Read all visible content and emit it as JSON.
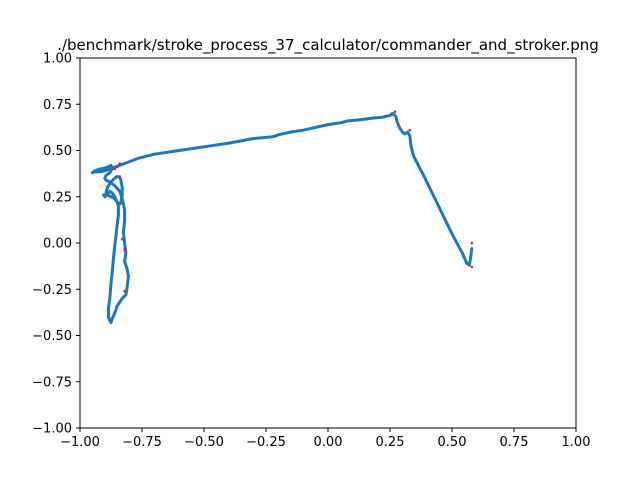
{
  "chart_data": {
    "type": "line",
    "title": "./benchmark/stroke_process_37_calculator/commander_and_stroker.png",
    "xlabel": "",
    "ylabel": "",
    "xlim": [
      -1.0,
      1.0
    ],
    "ylim": [
      -1.0,
      1.0
    ],
    "grid": false,
    "xticks": [
      "−1.00",
      "−0.75",
      "−0.50",
      "−0.25",
      "0.00",
      "0.25",
      "0.50",
      "0.75",
      "1.00"
    ],
    "yticks": [
      "−1.00",
      "−0.75",
      "−0.50",
      "−0.25",
      "0.00",
      "0.25",
      "0.50",
      "0.75",
      "1.00"
    ],
    "line_color": "#1f77b4",
    "marker_color": "#d62728",
    "series": [
      {
        "x": [
          0.58,
          0.575,
          0.57,
          0.56,
          0.54,
          0.5,
          0.46,
          0.42,
          0.38,
          0.345,
          0.335,
          0.33,
          0.32,
          0.31,
          0.3,
          0.29,
          0.28,
          0.275,
          0.27,
          0.26,
          0.25,
          0.22,
          0.18,
          0.15,
          0.12,
          0.08,
          0.05,
          0.0,
          -0.05,
          -0.1,
          -0.15,
          -0.2,
          -0.22,
          -0.26,
          -0.3,
          -0.4,
          -0.5,
          -0.6,
          -0.7,
          -0.76,
          -0.8,
          -0.84,
          -0.86,
          -0.88,
          -0.9,
          -0.92,
          -0.94,
          -0.95,
          -0.94,
          -0.92,
          -0.9,
          -0.89,
          -0.875,
          -0.87,
          -0.88,
          -0.895,
          -0.9,
          -0.895,
          -0.88,
          -0.86,
          -0.84,
          -0.83,
          -0.82,
          -0.82,
          -0.825,
          -0.82,
          -0.815,
          -0.82,
          -0.81,
          -0.805,
          -0.81,
          -0.815,
          -0.83,
          -0.85,
          -0.86,
          -0.87,
          -0.875,
          -0.88,
          -0.885,
          -0.885,
          -0.88,
          -0.875,
          -0.87,
          -0.865,
          -0.86,
          -0.855,
          -0.85,
          -0.845,
          -0.845,
          -0.85,
          -0.86,
          -0.875,
          -0.89,
          -0.895,
          -0.89,
          -0.875,
          -0.86,
          -0.85,
          -0.84,
          -0.835,
          -0.83,
          -0.83,
          -0.835,
          -0.84,
          -0.85,
          -0.86,
          -0.87,
          -0.88,
          -0.89,
          -0.9,
          -0.905
        ],
        "y": [
          -0.03,
          -0.08,
          -0.12,
          -0.11,
          -0.05,
          0.05,
          0.16,
          0.27,
          0.38,
          0.47,
          0.52,
          0.58,
          0.6,
          0.59,
          0.6,
          0.62,
          0.65,
          0.68,
          0.69,
          0.7,
          0.69,
          0.68,
          0.675,
          0.67,
          0.665,
          0.66,
          0.65,
          0.64,
          0.625,
          0.61,
          0.6,
          0.585,
          0.575,
          0.57,
          0.565,
          0.54,
          0.52,
          0.5,
          0.48,
          0.46,
          0.44,
          0.42,
          0.41,
          0.4,
          0.39,
          0.385,
          0.385,
          0.38,
          0.39,
          0.4,
          0.405,
          0.41,
          0.42,
          0.4,
          0.38,
          0.365,
          0.35,
          0.34,
          0.33,
          0.31,
          0.28,
          0.24,
          0.18,
          0.12,
          0.06,
          0.0,
          -0.05,
          -0.1,
          -0.14,
          -0.18,
          -0.24,
          -0.28,
          -0.3,
          -0.34,
          -0.38,
          -0.41,
          -0.43,
          -0.42,
          -0.4,
          -0.35,
          -0.3,
          -0.22,
          -0.16,
          -0.08,
          -0.02,
          0.04,
          0.1,
          0.15,
          0.2,
          0.22,
          0.24,
          0.25,
          0.26,
          0.27,
          0.3,
          0.33,
          0.35,
          0.36,
          0.355,
          0.34,
          0.3,
          0.26,
          0.22,
          0.21,
          0.22,
          0.25,
          0.27,
          0.28,
          0.26,
          0.25,
          0.26
        ]
      }
    ],
    "markers": {
      "x": [
        0.58,
        0.58,
        0.33,
        0.27,
        -0.82,
        -0.82,
        -0.83,
        -0.82,
        -0.84,
        -0.84,
        -0.85,
        -0.86
      ],
      "y": [
        0.0,
        -0.13,
        0.61,
        0.71,
        -0.03,
        -0.04,
        0.02,
        -0.26,
        0.36,
        0.43,
        0.41,
        0.4
      ]
    }
  }
}
